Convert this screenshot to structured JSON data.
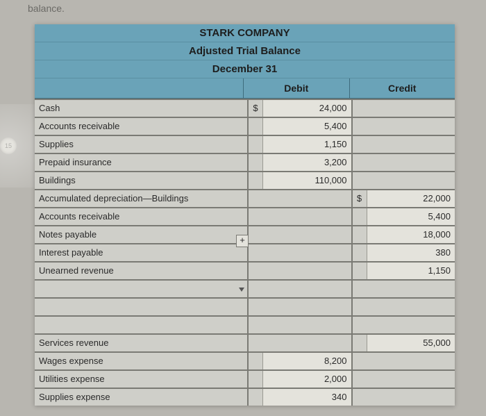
{
  "page_context": "balance.",
  "side_tab": "15",
  "header": {
    "company": "STARK COMPANY",
    "report": "Adjusted Trial Balance",
    "date": "December 31"
  },
  "columns": {
    "debit": "Debit",
    "credit": "Credit"
  },
  "rows": [
    {
      "account": "Cash",
      "debit_sym": "$",
      "debit": "24,000",
      "credit_sym": "",
      "credit": ""
    },
    {
      "account": "Accounts receivable",
      "debit_sym": "",
      "debit": "5,400",
      "credit_sym": "",
      "credit": ""
    },
    {
      "account": "Supplies",
      "debit_sym": "",
      "debit": "1,150",
      "credit_sym": "",
      "credit": ""
    },
    {
      "account": "Prepaid insurance",
      "debit_sym": "",
      "debit": "3,200",
      "credit_sym": "",
      "credit": ""
    },
    {
      "account": "Buildings",
      "debit_sym": "",
      "debit": "110,000",
      "credit_sym": "",
      "credit": ""
    },
    {
      "account": "Accumulated depreciation—Buildings",
      "debit_sym": "",
      "debit": "",
      "credit_sym": "$",
      "credit": "22,000"
    },
    {
      "account": "Accounts receivable",
      "debit_sym": "",
      "debit": "",
      "credit_sym": "",
      "credit": "5,400"
    },
    {
      "account": "Notes payable",
      "debit_sym": "",
      "debit": "",
      "credit_sym": "",
      "credit": "18,000"
    },
    {
      "account": "Interest payable",
      "debit_sym": "",
      "debit": "",
      "credit_sym": "",
      "credit": "380"
    },
    {
      "account": "Unearned revenue",
      "debit_sym": "",
      "debit": "",
      "credit_sym": "",
      "credit": "1,150"
    },
    {
      "account": "",
      "debit_sym": "",
      "debit": "",
      "credit_sym": "",
      "credit": ""
    },
    {
      "account": "",
      "debit_sym": "",
      "debit": "",
      "credit_sym": "",
      "credit": ""
    },
    {
      "account": "",
      "debit_sym": "",
      "debit": "",
      "credit_sym": "",
      "credit": ""
    },
    {
      "account": "Services revenue",
      "debit_sym": "",
      "debit": "",
      "credit_sym": "",
      "credit": "55,000"
    },
    {
      "account": "Wages expense",
      "debit_sym": "",
      "debit": "8,200",
      "credit_sym": "",
      "credit": ""
    },
    {
      "account": "Utilities expense",
      "debit_sym": "",
      "debit": "2,000",
      "credit_sym": "",
      "credit": ""
    },
    {
      "account": "Supplies expense",
      "debit_sym": "",
      "debit": "340",
      "credit_sym": "",
      "credit": ""
    }
  ],
  "colors": {
    "header_bg": "#6aa3b8",
    "sheet_bg": "#cfcfc9",
    "amt_bg": "#e4e3dc",
    "border": "#7a7a74",
    "page_bg": "#b8b6b0"
  },
  "glyphs": {
    "plus": "+",
    "caret": "▾"
  }
}
